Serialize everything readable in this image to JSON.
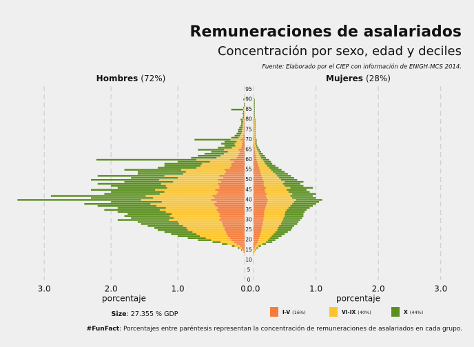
{
  "chart_data": {
    "type": "pyramid",
    "title": "Remuneraciones de asalariados",
    "subtitle": "Concentración por sexo, edad y deciles",
    "source": "Fuente: Elaborado por el CIEP con información de ENIGH-MCS 2014.",
    "size_label": "Size",
    "size_text": ": 27.355 % GDP",
    "funfact_label": "#FunFact",
    "funfact_text": ": Porcentajes entre paréntesis representan la concentración de remuneraciones de asalariados en cada grupo.",
    "ylim": [
      0,
      95
    ],
    "yticks": [
      0,
      5,
      10,
      15,
      20,
      25,
      30,
      35,
      40,
      45,
      50,
      55,
      60,
      65,
      70,
      75,
      80,
      85,
      90,
      95
    ],
    "ages": [
      14,
      15,
      16,
      17,
      18,
      19,
      20,
      21,
      22,
      23,
      24,
      25,
      26,
      27,
      28,
      29,
      30,
      31,
      32,
      33,
      34,
      35,
      36,
      37,
      38,
      39,
      40,
      41,
      42,
      43,
      44,
      45,
      46,
      47,
      48,
      49,
      50,
      51,
      52,
      53,
      54,
      55,
      56,
      57,
      58,
      59,
      60,
      61,
      62,
      63,
      64,
      65,
      66,
      67,
      68,
      69,
      70,
      71,
      72,
      73,
      74,
      75,
      76,
      77,
      78,
      79,
      80,
      81,
      82,
      83,
      84,
      85,
      86,
      87,
      88,
      89,
      90
    ],
    "legend": [
      {
        "name": "I-V",
        "share": "(16%)",
        "color": "#f47c3c"
      },
      {
        "name": "VI-IX",
        "share": "(40%)",
        "color": "#fcc42c"
      },
      {
        "name": "X",
        "share": "(44%)",
        "color": "#5a8f1e"
      }
    ],
    "panels": [
      {
        "label": "Hombres",
        "share": "(72%)",
        "xlabel": "porcentaje",
        "xlim": [
          0,
          3.6
        ],
        "xticks": [
          {
            "value": 0,
            "label": "0."
          },
          {
            "value": 1,
            "label": "1.0"
          },
          {
            "value": 2,
            "label": "2.0"
          },
          {
            "value": 3,
            "label": "3.0"
          }
        ],
        "series": [
          {
            "values": [
              0.01,
              0.02,
              0.04,
              0.07,
              0.12,
              0.16,
              0.2,
              0.22,
              0.25,
              0.27,
              0.28,
              0.3,
              0.3,
              0.32,
              0.33,
              0.34,
              0.38,
              0.36,
              0.38,
              0.37,
              0.4,
              0.42,
              0.4,
              0.44,
              0.46,
              0.42,
              0.5,
              0.45,
              0.48,
              0.42,
              0.4,
              0.44,
              0.38,
              0.38,
              0.4,
              0.35,
              0.4,
              0.32,
              0.38,
              0.3,
              0.28,
              0.3,
              0.22,
              0.2,
              0.2,
              0.16,
              0.22,
              0.12,
              0.1,
              0.09,
              0.07,
              0.09,
              0.05,
              0.04,
              0.04,
              0.03,
              0.06,
              0.02,
              0.02,
              0.01,
              0.01,
              0.01,
              0.01,
              0.01,
              0.01,
              0,
              0.01,
              0,
              0,
              0,
              0,
              0,
              0,
              0,
              0,
              0,
              0
            ]
          },
          {
            "values": [
              0.01,
              0.02,
              0.04,
              0.08,
              0.14,
              0.2,
              0.3,
              0.36,
              0.42,
              0.45,
              0.5,
              0.55,
              0.57,
              0.6,
              0.65,
              0.66,
              0.75,
              0.7,
              0.74,
              0.72,
              0.78,
              0.85,
              0.78,
              0.88,
              0.95,
              0.82,
              1.05,
              0.92,
              1.0,
              0.85,
              0.8,
              0.9,
              0.78,
              0.8,
              0.85,
              0.72,
              0.88,
              0.68,
              0.82,
              0.62,
              0.6,
              0.65,
              0.5,
              0.46,
              0.44,
              0.36,
              0.5,
              0.3,
              0.26,
              0.22,
              0.18,
              0.22,
              0.14,
              0.1,
              0.11,
              0.09,
              0.15,
              0.07,
              0.05,
              0.04,
              0.03,
              0.03,
              0.02,
              0.02,
              0.02,
              0.02,
              0.02,
              0.01,
              0.01,
              0.01,
              0.01,
              0.02,
              0.01,
              0,
              0,
              0,
              0
            ]
          },
          {
            "values": [
              0,
              0.01,
              0.02,
              0.04,
              0.08,
              0.12,
              0.2,
              0.27,
              0.33,
              0.38,
              0.42,
              0.45,
              0.48,
              0.53,
              0.57,
              0.6,
              0.77,
              0.64,
              0.68,
              0.66,
              0.72,
              0.83,
              0.72,
              0.88,
              0.99,
              0.76,
              1.85,
              0.93,
              1.42,
              0.83,
              0.8,
              0.96,
              0.74,
              0.82,
              0.95,
              0.73,
              1.02,
              0.7,
              1.0,
              0.68,
              0.72,
              0.85,
              0.58,
              0.54,
              0.56,
              0.48,
              1.5,
              0.38,
              0.34,
              0.29,
              0.25,
              0.39,
              0.21,
              0.16,
              0.2,
              0.18,
              0.54,
              0.11,
              0.08,
              0.07,
              0.06,
              0.06,
              0.05,
              0.03,
              0.02,
              0.03,
              0.03,
              0.02,
              0.01,
              0.02,
              0.01,
              0.18,
              0.01,
              0.01,
              0.01,
              0,
              0.02
            ]
          }
        ]
      },
      {
        "label": "Mujeres",
        "share": "(28%)",
        "xlabel": "porcentaje",
        "xlim": [
          0,
          3.5
        ],
        "xticks": [
          {
            "value": 0,
            "label": "0.0"
          },
          {
            "value": 1,
            "label": "1.0"
          },
          {
            "value": 2,
            "label": "2.0"
          },
          {
            "value": 3,
            "label": "3.0"
          }
        ],
        "series": [
          {
            "values": [
              0.01,
              0.01,
              0.02,
              0.03,
              0.05,
              0.07,
              0.08,
              0.09,
              0.1,
              0.11,
              0.12,
              0.13,
              0.13,
              0.14,
              0.15,
              0.15,
              0.16,
              0.16,
              0.17,
              0.17,
              0.17,
              0.18,
              0.19,
              0.2,
              0.21,
              0.22,
              0.23,
              0.21,
              0.2,
              0.21,
              0.19,
              0.18,
              0.2,
              0.17,
              0.16,
              0.17,
              0.15,
              0.14,
              0.13,
              0.12,
              0.11,
              0.1,
              0.09,
              0.08,
              0.07,
              0.06,
              0.05,
              0.04,
              0.04,
              0.03,
              0.03,
              0.02,
              0.02,
              0.01,
              0.01,
              0.01,
              0.01,
              0.01,
              0.01,
              0.01,
              0.01,
              0.01,
              0.01,
              0.01,
              0.01,
              0.01,
              0.01,
              0,
              0,
              0,
              0,
              0,
              0,
              0,
              0,
              0,
              0
            ]
          },
          {
            "values": [
              0.01,
              0.02,
              0.03,
              0.05,
              0.09,
              0.13,
              0.15,
              0.17,
              0.19,
              0.21,
              0.23,
              0.25,
              0.26,
              0.27,
              0.29,
              0.3,
              0.31,
              0.32,
              0.33,
              0.33,
              0.34,
              0.35,
              0.37,
              0.39,
              0.41,
              0.43,
              0.45,
              0.41,
              0.39,
              0.41,
              0.37,
              0.35,
              0.39,
              0.33,
              0.31,
              0.33,
              0.29,
              0.27,
              0.25,
              0.23,
              0.2,
              0.18,
              0.16,
              0.14,
              0.12,
              0.11,
              0.1,
              0.08,
              0.07,
              0.06,
              0.05,
              0.04,
              0.03,
              0.03,
              0.02,
              0.02,
              0.02,
              0.01,
              0.01,
              0.01,
              0.01,
              0.01,
              0.01,
              0.01,
              0.01,
              0.01,
              0.01,
              0.01,
              0.01,
              0.01,
              0.01,
              0.01,
              0.01,
              0.01,
              0.01,
              0.01,
              0.01
            ]
          },
          {
            "values": [
              0,
              0.01,
              0.02,
              0.04,
              0.06,
              0.1,
              0.12,
              0.14,
              0.16,
              0.18,
              0.2,
              0.22,
              0.23,
              0.24,
              0.26,
              0.27,
              0.28,
              0.3,
              0.3,
              0.3,
              0.31,
              0.32,
              0.34,
              0.36,
              0.38,
              0.4,
              0.42,
              0.38,
              0.36,
              0.38,
              0.34,
              0.32,
              0.36,
              0.3,
              0.28,
              0.3,
              0.26,
              0.24,
              0.22,
              0.2,
              0.19,
              0.17,
              0.15,
              0.13,
              0.11,
              0.11,
              0.1,
              0.08,
              0.07,
              0.06,
              0.04,
              0.04,
              0.03,
              0.02,
              0.02,
              0.02,
              0.02,
              0.01,
              0.01,
              0.01,
              0.01,
              0.01,
              0.01,
              0.01,
              0.01,
              0.01,
              0.01,
              0.01,
              0.01,
              0.01,
              0.01,
              0.01,
              0.01,
              0.01,
              0.01,
              0.01,
              0.01
            ]
          }
        ]
      }
    ]
  }
}
